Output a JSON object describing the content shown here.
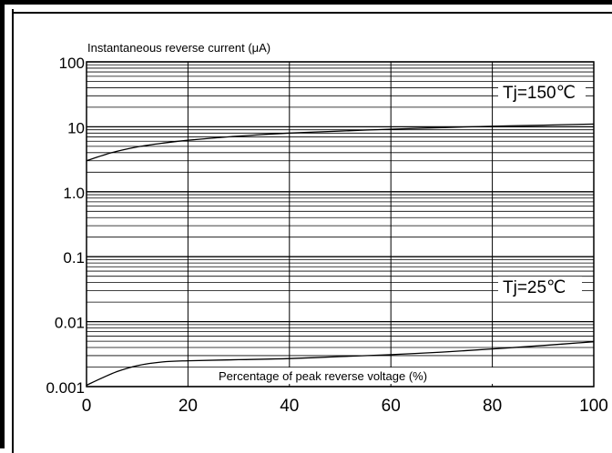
{
  "chart_data": {
    "type": "line",
    "title": "",
    "ylabel": "Instantaneous reverse current (μA)",
    "xlabel": "Percentage of peak reverse voltage (%)",
    "xlim": [
      0,
      100
    ],
    "ylim": [
      0.001,
      100
    ],
    "yscale": "log",
    "grid": true,
    "x_ticks": [
      "0",
      "20",
      "40",
      "60",
      "80",
      "100"
    ],
    "y_ticks": [
      "0.001",
      "0.01",
      "0.1",
      "1.0",
      "10",
      "100"
    ],
    "series": [
      {
        "name": "Tj=150℃",
        "x": [
          0,
          5,
          10,
          15,
          20,
          30,
          40,
          50,
          60,
          70,
          80,
          90,
          100
        ],
        "y": [
          3.0,
          4.0,
          4.9,
          5.6,
          6.2,
          7.2,
          8.0,
          8.6,
          9.2,
          9.7,
          10.2,
          10.6,
          11.0
        ]
      },
      {
        "name": "Tj=25℃",
        "x": [
          0,
          3,
          6,
          10,
          15,
          20,
          30,
          40,
          50,
          60,
          70,
          80,
          90,
          100
        ],
        "y": [
          0.00105,
          0.00135,
          0.0017,
          0.0021,
          0.0024,
          0.0025,
          0.0026,
          0.0027,
          0.0029,
          0.0031,
          0.0034,
          0.0038,
          0.0043,
          0.0049
        ]
      }
    ],
    "annotations": [
      {
        "text": "Tj=150℃",
        "series": 0
      },
      {
        "text": "Tj=25℃",
        "series": 1
      }
    ]
  }
}
